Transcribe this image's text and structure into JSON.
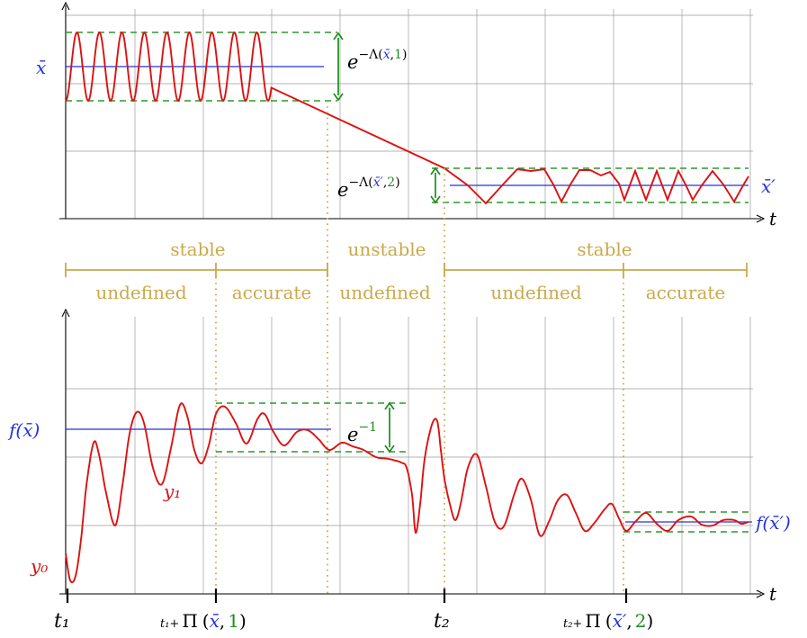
{
  "top_plot": {
    "t_axis_label": "t",
    "x_bar_label": "x̄",
    "x_bar_prime_label": "x̄′",
    "upper_band_label": {
      "base": "e",
      "exp_pre": "−Λ(",
      "exp_var": "x̄",
      "exp_sep": ",",
      "exp_num": "1",
      "exp_post": ")"
    },
    "lower_band_label": {
      "base": "e",
      "exp_pre": "−Λ(",
      "exp_var": "x̄′",
      "exp_sep": ",",
      "exp_num": "2",
      "exp_post": ")"
    }
  },
  "phases": {
    "row1": [
      "stable",
      "unstable",
      "stable"
    ],
    "row2": [
      "undefined",
      "accurate",
      "undefined",
      "undefined",
      "accurate"
    ]
  },
  "bottom_plot": {
    "t_axis_label": "t",
    "f_x_bar_label": "f(x̄)",
    "f_x_bar_prime_label": "f(x̄′)",
    "y0_label": "y₀",
    "y1_label": "y₁",
    "band_label": {
      "base": "e",
      "exp": "−1"
    }
  },
  "time_labels": {
    "t1": "t₁",
    "t2": "t₂",
    "t1_plus": {
      "small": "t₁+",
      "pi": "Π",
      "open": "(",
      "var": "x̄",
      "sep": ",",
      "num": "1",
      "close": ")"
    },
    "t2_plus": {
      "small": "t₂+",
      "pi": "Π",
      "open": "(",
      "var": "x̄′",
      "sep": ",",
      "num": "2",
      "close": ")"
    }
  },
  "colors": {
    "trajectory": "#dd1111",
    "equilibrium": "#2233dd",
    "band": "#2a9a2a",
    "phase": "#c9a94a",
    "grid": "#9a9a9a"
  }
}
